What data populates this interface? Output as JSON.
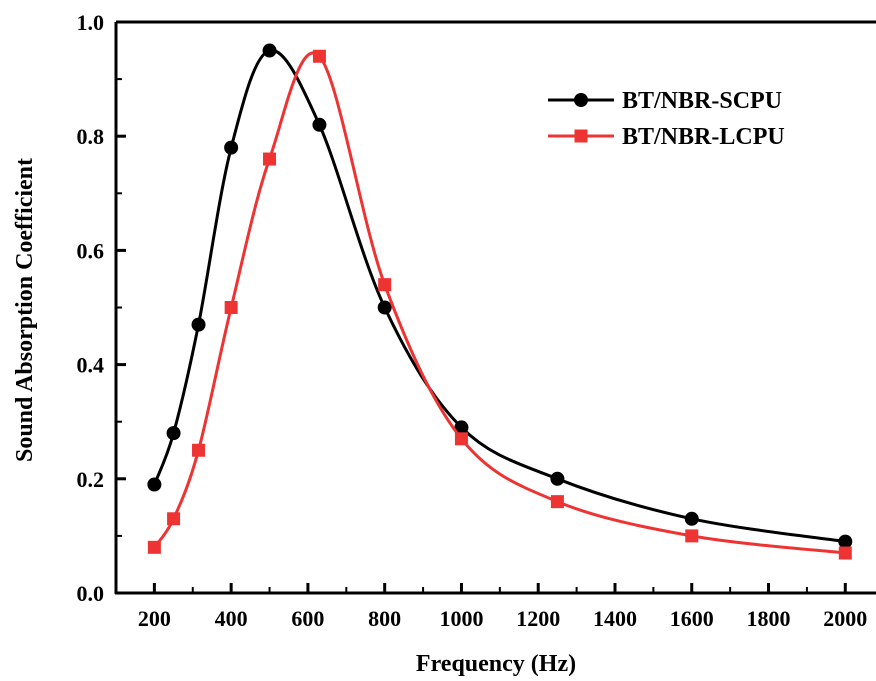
{
  "chart_data": {
    "type": "line",
    "title": "",
    "xlabel": "Frequency (Hz)",
    "ylabel": "Sound Absorption Coefficient",
    "xlim": [
      100,
      2080
    ],
    "ylim": [
      0.0,
      1.0
    ],
    "xticks": [
      200,
      400,
      600,
      800,
      1000,
      1200,
      1400,
      1600,
      1800,
      2000
    ],
    "xtick_labels": [
      "200",
      "400",
      "600",
      "800",
      "1000",
      "1200",
      "1400",
      "1600",
      "1800",
      "2000"
    ],
    "yticks": [
      0.0,
      0.2,
      0.4,
      0.6,
      0.8,
      1.0
    ],
    "ytick_labels": [
      "0.0",
      "0.2",
      "0.4",
      "0.6",
      "0.8",
      "1.0"
    ],
    "grid": false,
    "legend_position": "top-right",
    "series": [
      {
        "name": "BT/NBR-SCPU",
        "color": "#000000",
        "marker": "circle",
        "x": [
          200,
          250,
          315,
          400,
          500,
          630,
          800,
          1000,
          1250,
          1600,
          2000
        ],
        "y": [
          0.19,
          0.28,
          0.47,
          0.78,
          0.95,
          0.82,
          0.5,
          0.29,
          0.2,
          0.13,
          0.09
        ]
      },
      {
        "name": "BT/NBR-LCPU",
        "color": "#ee3333",
        "marker": "square",
        "x": [
          200,
          250,
          315,
          400,
          500,
          630,
          800,
          1000,
          1250,
          1600,
          2000
        ],
        "y": [
          0.08,
          0.13,
          0.25,
          0.5,
          0.76,
          0.94,
          0.54,
          0.27,
          0.16,
          0.1,
          0.07
        ]
      }
    ]
  }
}
